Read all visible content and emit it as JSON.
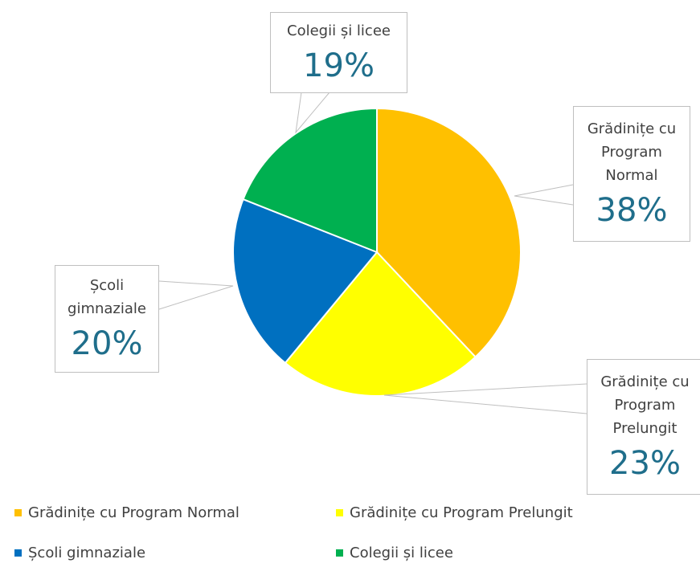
{
  "chart_data": {
    "type": "pie",
    "categories": [
      "Grădinițe cu Program Normal",
      "Grădinițe cu Program Prelungit",
      "Școli gimnaziale",
      "Colegii și licee"
    ],
    "values": [
      38,
      23,
      20,
      19
    ],
    "value_labels": [
      "38%",
      "23%",
      "20%",
      "19%"
    ],
    "colors": [
      "#FFC000",
      "#FFFF00",
      "#0070C0",
      "#00B050"
    ],
    "legend": "bottom"
  }
}
